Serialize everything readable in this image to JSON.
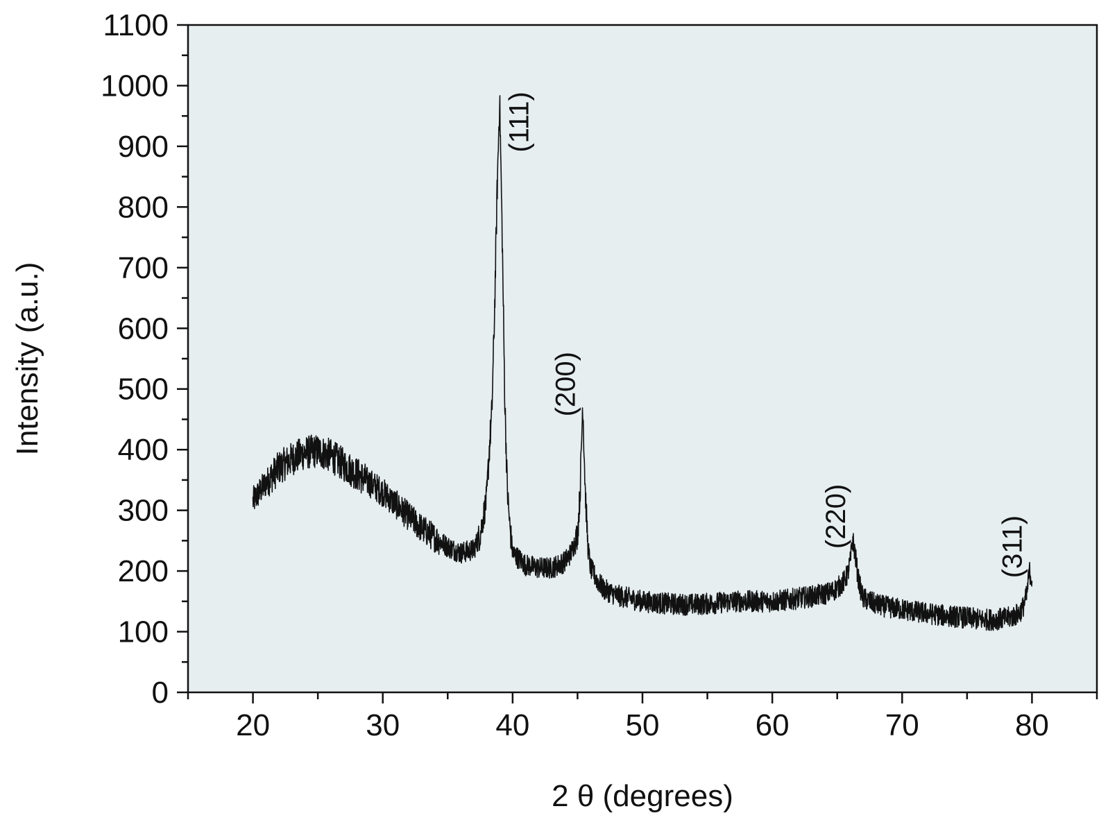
{
  "chart_data": {
    "type": "line",
    "xlabel": "2 θ (degrees)",
    "ylabel": "Intensity (a.u.)",
    "xlim": [
      15,
      85
    ],
    "ylim": [
      0,
      1100
    ],
    "xticks": [
      20,
      30,
      40,
      50,
      60,
      70,
      80
    ],
    "yticks": [
      0,
      100,
      200,
      300,
      400,
      500,
      600,
      700,
      800,
      900,
      1000,
      1100
    ],
    "grid": false,
    "plot_background": "#e6eef0",
    "line_color": "#111111",
    "series": [
      {
        "x": [
          20,
          21,
          22,
          23,
          24,
          25,
          26,
          27,
          28,
          29,
          30,
          31,
          32,
          33,
          34,
          35,
          36,
          37,
          37.5,
          38,
          38.2,
          38.4,
          38.6,
          38.8,
          39,
          39.2,
          39.4,
          39.6,
          39.8,
          40,
          40.5,
          41,
          42,
          43,
          44,
          44.5,
          45,
          45.2,
          45.4,
          45.6,
          45.8,
          46,
          46.5,
          47,
          48,
          49,
          50,
          51,
          52,
          53,
          54,
          55,
          56,
          57,
          58,
          59,
          60,
          61,
          62,
          63,
          64,
          64.5,
          65,
          65.5,
          65.8,
          66,
          66.2,
          66.4,
          66.6,
          66.8,
          67,
          67.5,
          68,
          69,
          70,
          71,
          72,
          73,
          74,
          75,
          76,
          77,
          78,
          78.5,
          79,
          79.3,
          79.6,
          79.8,
          80
        ],
        "y": [
          315,
          345,
          370,
          385,
          395,
          398,
          390,
          375,
          360,
          345,
          330,
          310,
          290,
          270,
          255,
          240,
          230,
          235,
          260,
          320,
          400,
          460,
          620,
          820,
          980,
          750,
          480,
          330,
          270,
          230,
          220,
          210,
          205,
          205,
          215,
          230,
          260,
          330,
          480,
          330,
          240,
          205,
          185,
          170,
          160,
          155,
          150,
          148,
          146,
          145,
          145,
          146,
          148,
          150,
          150,
          150,
          150,
          152,
          155,
          158,
          162,
          165,
          172,
          182,
          195,
          215,
          252,
          225,
          190,
          170,
          155,
          150,
          145,
          140,
          137,
          133,
          130,
          127,
          125,
          123,
          120,
          120,
          122,
          125,
          130,
          140,
          160,
          200,
          185
        ]
      }
    ],
    "annotations": [
      {
        "text": "(111)",
        "x": 41.2,
        "y": 940
      },
      {
        "text": "(200)",
        "x": 44.8,
        "y": 508
      },
      {
        "text": "(220)",
        "x": 65.6,
        "y": 290
      },
      {
        "text": "(311)",
        "x": 79.2,
        "y": 240
      }
    ]
  }
}
